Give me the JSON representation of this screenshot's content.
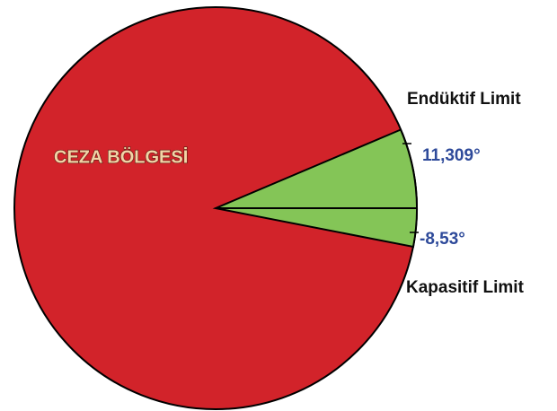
{
  "labels": {
    "zone": "CEZA BÖLGESİ",
    "inductive_limit": "Endüktif Limit",
    "inductive_angle": "11,309°",
    "capacitive_angle": "-8,53°",
    "capacitive_limit": "Kapasitif Limit"
  }
}
